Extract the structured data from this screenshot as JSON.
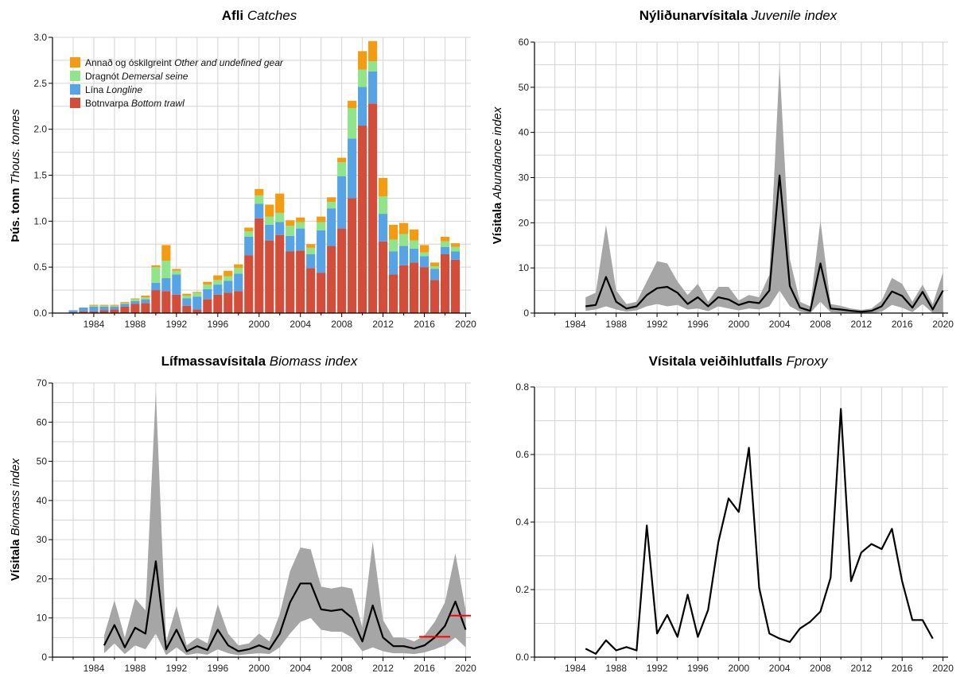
{
  "colors": {
    "bottom_trawl": "#d24e3a",
    "longline": "#56a3e6",
    "demersal_seine": "#90e48a",
    "other_gear": "#f39c12",
    "band": "#a6a6a6",
    "line": "#000000",
    "reference": "#ff0000",
    "grid": "#d3d3d3"
  },
  "chart_data": [
    {
      "id": "catches",
      "type": "bar",
      "stacked": true,
      "title": "Afli",
      "title_en": "Catches",
      "ylabel": "Þús. tonn",
      "ylabel_en": "Thous. tonnes",
      "xlim": [
        1980,
        2020.5
      ],
      "ylim": [
        0,
        3.0
      ],
      "xticks": [
        1984,
        1988,
        1992,
        1996,
        2000,
        2004,
        2008,
        2012,
        2016,
        2020
      ],
      "yticks": [
        "0.0",
        "0.5",
        "1.0",
        "1.5",
        "2.0",
        "2.5",
        "3.0"
      ],
      "grid": true,
      "legend_position": "top-left",
      "x": [
        1982,
        1983,
        1984,
        1985,
        1986,
        1987,
        1988,
        1989,
        1990,
        1991,
        1992,
        1993,
        1994,
        1995,
        1996,
        1997,
        1998,
        1999,
        2000,
        2001,
        2002,
        2003,
        2004,
        2005,
        2006,
        2007,
        2008,
        2009,
        2010,
        2011,
        2012,
        2013,
        2014,
        2015,
        2016,
        2017,
        2018,
        2019
      ],
      "series": [
        {
          "name": "Botnvarpa",
          "name_en": "Bottom trawl",
          "color_key": "bottom_trawl",
          "values": [
            0.01,
            0.02,
            0.02,
            0.03,
            0.04,
            0.07,
            0.1,
            0.11,
            0.25,
            0.24,
            0.2,
            0.08,
            0.04,
            0.15,
            0.2,
            0.22,
            0.24,
            0.63,
            1.03,
            0.79,
            0.85,
            0.67,
            0.68,
            0.49,
            0.44,
            0.73,
            0.92,
            1.25,
            2.04,
            2.28,
            0.78,
            0.42,
            0.52,
            0.55,
            0.5,
            0.36,
            0.64,
            0.58
          ]
        },
        {
          "name": "Lína",
          "name_en": "Longline",
          "color_key": "longline",
          "values": [
            0.02,
            0.04,
            0.05,
            0.04,
            0.03,
            0.03,
            0.03,
            0.04,
            0.08,
            0.14,
            0.22,
            0.08,
            0.14,
            0.11,
            0.11,
            0.13,
            0.19,
            0.2,
            0.16,
            0.17,
            0.14,
            0.17,
            0.24,
            0.15,
            0.46,
            0.41,
            0.57,
            0.65,
            0.42,
            0.35,
            0.3,
            0.25,
            0.21,
            0.15,
            0.12,
            0.12,
            0.08,
            0.09
          ]
        },
        {
          "name": "Dragnót",
          "name_en": "Demersal seine",
          "color_key": "demersal_seine",
          "values": [
            0.0,
            0.0,
            0.01,
            0.01,
            0.01,
            0.01,
            0.02,
            0.02,
            0.17,
            0.19,
            0.04,
            0.03,
            0.04,
            0.05,
            0.05,
            0.05,
            0.06,
            0.06,
            0.09,
            0.09,
            0.1,
            0.11,
            0.07,
            0.07,
            0.09,
            0.07,
            0.15,
            0.33,
            0.19,
            0.11,
            0.19,
            0.13,
            0.13,
            0.09,
            0.04,
            0.03,
            0.06,
            0.05
          ]
        },
        {
          "name": "Annað og óskilgreint",
          "name_en": "Other and undefined gear",
          "color_key": "other_gear",
          "values": [
            0.0,
            0.0,
            0.01,
            0.01,
            0.01,
            0.01,
            0.01,
            0.02,
            0.02,
            0.17,
            0.02,
            0.02,
            0.01,
            0.03,
            0.05,
            0.06,
            0.04,
            0.04,
            0.07,
            0.13,
            0.21,
            0.06,
            0.05,
            0.04,
            0.06,
            0.05,
            0.05,
            0.08,
            0.2,
            0.22,
            0.2,
            0.16,
            0.12,
            0.12,
            0.08,
            0.04,
            0.05,
            0.04
          ]
        }
      ]
    },
    {
      "id": "juvenile",
      "type": "line",
      "title": "Nýliðunarvísitala",
      "title_en": "Juvenile index",
      "ylabel": "Vísitala",
      "ylabel_en": "Abundance index",
      "xlim": [
        1980,
        2020.5
      ],
      "ylim": [
        0,
        60
      ],
      "xticks": [
        1984,
        1988,
        1992,
        1996,
        2000,
        2004,
        2008,
        2012,
        2016,
        2020
      ],
      "yticks": [
        "0",
        "10",
        "20",
        "30",
        "40",
        "50",
        "60"
      ],
      "grid": true,
      "x": [
        1985,
        1986,
        1987,
        1988,
        1989,
        1990,
        1991,
        1992,
        1993,
        1994,
        1995,
        1996,
        1997,
        1998,
        1999,
        2000,
        2001,
        2002,
        2003,
        2004,
        2005,
        2006,
        2007,
        2008,
        2009,
        2010,
        2011,
        2012,
        2013,
        2014,
        2015,
        2016,
        2017,
        2018,
        2019,
        2020
      ],
      "values": [
        1.5,
        1.8,
        8.0,
        2.5,
        1.0,
        1.5,
        4.0,
        5.5,
        5.8,
        4.5,
        2.0,
        3.5,
        1.5,
        3.5,
        3.0,
        1.8,
        2.5,
        2.2,
        5.0,
        30.5,
        6.0,
        1.2,
        0.5,
        11.0,
        1.0,
        0.8,
        0.5,
        0.3,
        0.5,
        1.5,
        4.8,
        3.8,
        1.2,
        4.7,
        0.8,
        5.0
      ],
      "lower": [
        0.5,
        0.8,
        1.5,
        0.8,
        0.3,
        0.6,
        1.5,
        2.0,
        1.5,
        1.8,
        0.8,
        1.0,
        0.4,
        1.5,
        1.0,
        0.6,
        1.0,
        0.8,
        1.5,
        5.0,
        1.5,
        0.3,
        0.0,
        2.5,
        0.2,
        0.1,
        0.0,
        0.0,
        0.0,
        0.3,
        1.8,
        1.2,
        0.2,
        2.0,
        0.0,
        0.0
      ],
      "upper": [
        3.5,
        4.5,
        19.5,
        5.0,
        2.0,
        2.5,
        7.0,
        11.5,
        11.0,
        7.0,
        4.0,
        6.5,
        2.5,
        5.8,
        5.8,
        2.8,
        4.0,
        3.5,
        8.5,
        55.0,
        12.0,
        2.5,
        1.5,
        20.5,
        2.0,
        1.6,
        1.0,
        0.7,
        1.0,
        2.8,
        7.8,
        6.5,
        2.5,
        6.3,
        2.0,
        9.0
      ]
    },
    {
      "id": "biomass",
      "type": "line",
      "title": "Lífmassavísitala",
      "title_en": "Biomass index",
      "ylabel": "Vísitala",
      "ylabel_en": "Biomass index",
      "xlim": [
        1980,
        2020.5
      ],
      "ylim": [
        0,
        70
      ],
      "xticks": [
        1984,
        1988,
        1992,
        1996,
        2000,
        2004,
        2008,
        2012,
        2016,
        2020
      ],
      "yticks": [
        "0",
        "10",
        "20",
        "30",
        "40",
        "50",
        "60",
        "70"
      ],
      "grid": true,
      "x": [
        1985,
        1986,
        1987,
        1988,
        1989,
        1990,
        1991,
        1992,
        1993,
        1994,
        1995,
        1996,
        1997,
        1998,
        1999,
        2000,
        2001,
        2002,
        2003,
        2004,
        2005,
        2006,
        2007,
        2008,
        2009,
        2010,
        2011,
        2012,
        2013,
        2014,
        2015,
        2016,
        2017,
        2018,
        2019,
        2020
      ],
      "values": [
        3.0,
        8.2,
        2.5,
        7.5,
        6.0,
        24.5,
        2.0,
        7.0,
        1.5,
        2.8,
        1.8,
        7.0,
        3.0,
        1.5,
        2.0,
        3.0,
        2.0,
        6.0,
        14.0,
        18.8,
        18.8,
        12.2,
        11.8,
        12.2,
        10.0,
        4.0,
        13.2,
        5.0,
        2.8,
        2.8,
        2.2,
        3.0,
        5.0,
        8.0,
        14.2,
        7.0
      ],
      "lower": [
        1.0,
        3.5,
        0.8,
        3.0,
        2.0,
        6.0,
        0.5,
        2.5,
        0.5,
        1.0,
        0.6,
        2.0,
        1.0,
        0.5,
        0.8,
        1.0,
        0.8,
        2.5,
        6.0,
        9.0,
        10.0,
        7.0,
        6.5,
        6.5,
        5.0,
        1.5,
        2.5,
        1.5,
        1.0,
        1.0,
        0.8,
        1.2,
        2.0,
        3.0,
        5.0,
        2.5
      ],
      "upper": [
        5.5,
        14.5,
        5.0,
        15.0,
        12.0,
        68.0,
        4.0,
        13.0,
        3.0,
        5.0,
        3.5,
        13.5,
        6.0,
        3.0,
        3.5,
        6.0,
        4.0,
        11.0,
        22.0,
        28.0,
        27.5,
        18.0,
        17.5,
        18.0,
        17.5,
        7.5,
        29.5,
        9.5,
        5.0,
        5.0,
        4.0,
        5.5,
        9.0,
        14.0,
        26.5,
        12.0
      ],
      "reference_lines": [
        {
          "x0": 2015.5,
          "x1": 2018.5,
          "y": 5.2
        },
        {
          "x0": 2018.5,
          "x1": 2020.5,
          "y": 10.6
        }
      ]
    },
    {
      "id": "fproxy",
      "type": "line",
      "title": "Vísitala veiðihlutfalls",
      "title_en": "Fproxy",
      "xlim": [
        1980,
        2020.5
      ],
      "ylim": [
        0,
        0.8
      ],
      "xticks": [
        1984,
        1988,
        1992,
        1996,
        2000,
        2004,
        2008,
        2012,
        2016,
        2020
      ],
      "yticks": [
        "0.0",
        "0.2",
        "0.4",
        "0.6",
        "0.8"
      ],
      "grid": true,
      "x": [
        1985,
        1986,
        1987,
        1988,
        1989,
        1990,
        1991,
        1992,
        1993,
        1994,
        1995,
        1996,
        1997,
        1998,
        1999,
        2000,
        2001,
        2002,
        2003,
        2004,
        2005,
        2006,
        2007,
        2008,
        2009,
        2010,
        2011,
        2012,
        2013,
        2014,
        2015,
        2016,
        2017,
        2018,
        2019
      ],
      "values": [
        0.025,
        0.01,
        0.05,
        0.02,
        0.03,
        0.02,
        0.39,
        0.07,
        0.125,
        0.06,
        0.185,
        0.06,
        0.14,
        0.34,
        0.47,
        0.43,
        0.62,
        0.205,
        0.07,
        0.055,
        0.045,
        0.085,
        0.105,
        0.135,
        0.235,
        0.735,
        0.225,
        0.31,
        0.335,
        0.32,
        0.38,
        0.225,
        0.11,
        0.11,
        0.055
      ]
    }
  ]
}
